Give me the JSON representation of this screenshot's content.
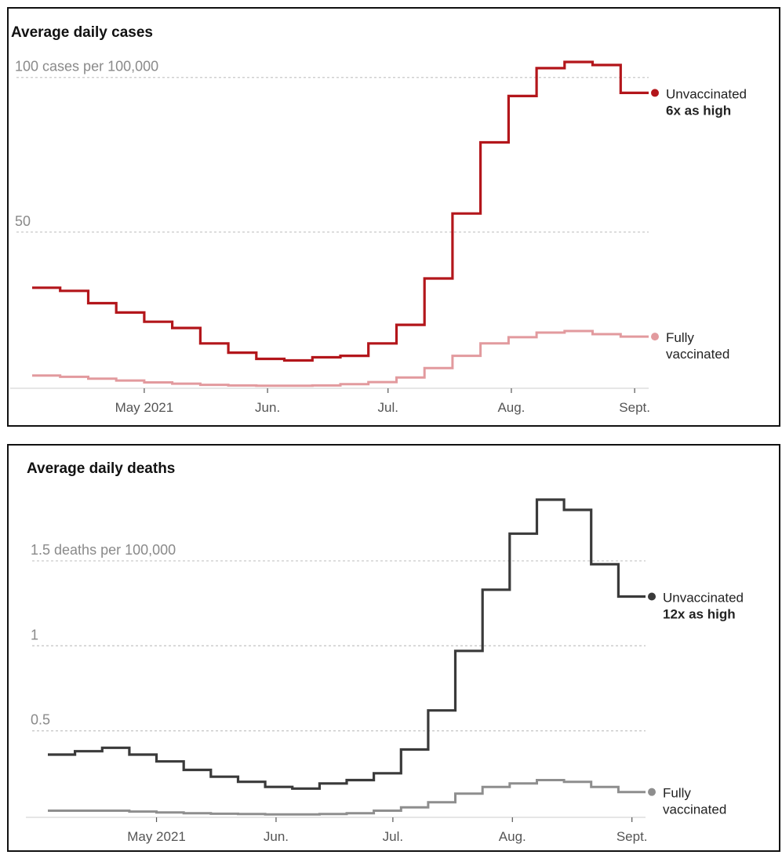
{
  "chart_data": [
    {
      "type": "line",
      "title": "Average daily cases",
      "ylim": [
        0,
        105
      ],
      "y_ticks": [
        {
          "value": 50,
          "label": "50"
        },
        {
          "value": 100,
          "label": "100 cases per 100,000"
        }
      ],
      "x_ticks": [
        "May 2021",
        "Jun.",
        "Jul.",
        "Aug.",
        "Sept."
      ],
      "x_tick_weeks": [
        4,
        8.4,
        12.7,
        17.1,
        21.5
      ],
      "grid": true,
      "step": true,
      "x_unit": "week",
      "series": [
        {
          "name": "Unvaccinated",
          "color": "#b3161b",
          "values": [
            32,
            31,
            27,
            24,
            21,
            19,
            14,
            11,
            9,
            8.5,
            9.5,
            10,
            14,
            20,
            35,
            56,
            79,
            94,
            103,
            105,
            104,
            95
          ],
          "annotation": "6x as high",
          "label_lines": [
            "Unvaccinated",
            "6x as high"
          ]
        },
        {
          "name": "Fully vaccinated",
          "color": "#e29a9e",
          "values": [
            3.6,
            3.2,
            2.6,
            2,
            1.4,
            1,
            0.6,
            0.4,
            0.3,
            0.3,
            0.4,
            0.8,
            1.5,
            3,
            6,
            10,
            14,
            16,
            17.5,
            18,
            17,
            16.2
          ],
          "label_lines": [
            "Fully",
            "vaccinated"
          ]
        }
      ]
    },
    {
      "type": "line",
      "title": "Average daily deaths",
      "ylim": [
        0,
        1.86
      ],
      "y_ticks": [
        {
          "value": 0.5,
          "label": "0.5"
        },
        {
          "value": 1,
          "label": "1"
        },
        {
          "value": 1.5,
          "label": "1.5 deaths per 100,000"
        }
      ],
      "x_ticks": [
        "May 2021",
        "Jun.",
        "Jul.",
        "Aug.",
        "Sept."
      ],
      "x_tick_weeks": [
        4,
        8.4,
        12.7,
        17.1,
        21.5
      ],
      "grid": true,
      "step": true,
      "x_unit": "week",
      "series": [
        {
          "name": "Unvaccinated",
          "color": "#3a3a3a",
          "values": [
            0.36,
            0.38,
            0.4,
            0.36,
            0.32,
            0.27,
            0.23,
            0.2,
            0.17,
            0.16,
            0.19,
            0.21,
            0.25,
            0.39,
            0.62,
            0.97,
            1.33,
            1.66,
            1.86,
            1.8,
            1.48,
            1.29
          ],
          "annotation": "12x as high",
          "label_lines": [
            "Unvaccinated",
            "12x as high"
          ]
        },
        {
          "name": "Fully vaccinated",
          "color": "#8e8e8e",
          "values": [
            0.03,
            0.03,
            0.03,
            0.025,
            0.02,
            0.015,
            0.012,
            0.01,
            0.008,
            0.008,
            0.01,
            0.015,
            0.03,
            0.05,
            0.08,
            0.13,
            0.17,
            0.19,
            0.21,
            0.2,
            0.17,
            0.14
          ],
          "label_lines": [
            "Fully",
            "vaccinated"
          ]
        }
      ]
    }
  ]
}
